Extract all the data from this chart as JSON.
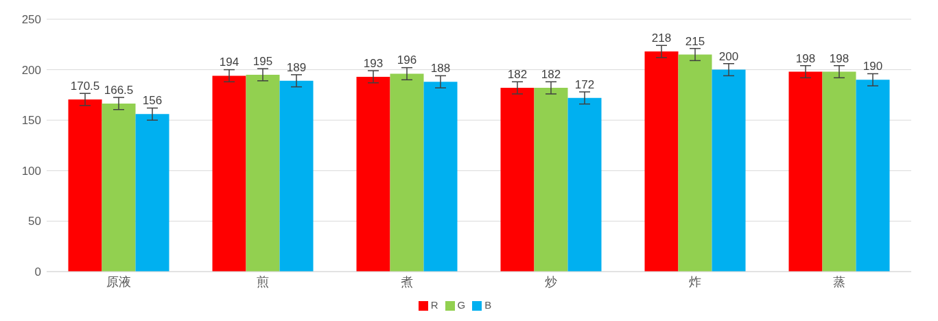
{
  "chart_data": {
    "type": "bar",
    "categories": [
      "原液",
      "煎",
      "煮",
      "炒",
      "炸",
      "蒸"
    ],
    "series": [
      {
        "name": "R",
        "color": "#ff0000",
        "values": [
          170.5,
          194,
          193,
          182,
          218,
          198
        ],
        "errors": [
          6,
          6,
          6,
          6,
          6,
          6
        ]
      },
      {
        "name": "G",
        "color": "#92d050",
        "values": [
          166.5,
          195,
          196,
          182,
          215,
          198
        ],
        "errors": [
          6,
          6,
          6,
          6,
          6,
          6
        ]
      },
      {
        "name": "B",
        "color": "#00b0f0",
        "values": [
          156,
          189,
          188,
          172,
          200,
          190
        ],
        "errors": [
          6,
          6,
          6,
          6,
          6,
          6
        ]
      }
    ],
    "ylim": [
      0,
      250
    ],
    "yticks": [
      0,
      50,
      100,
      150,
      200,
      250
    ],
    "grid": "y",
    "legend": "bottom",
    "data_labels": true
  }
}
